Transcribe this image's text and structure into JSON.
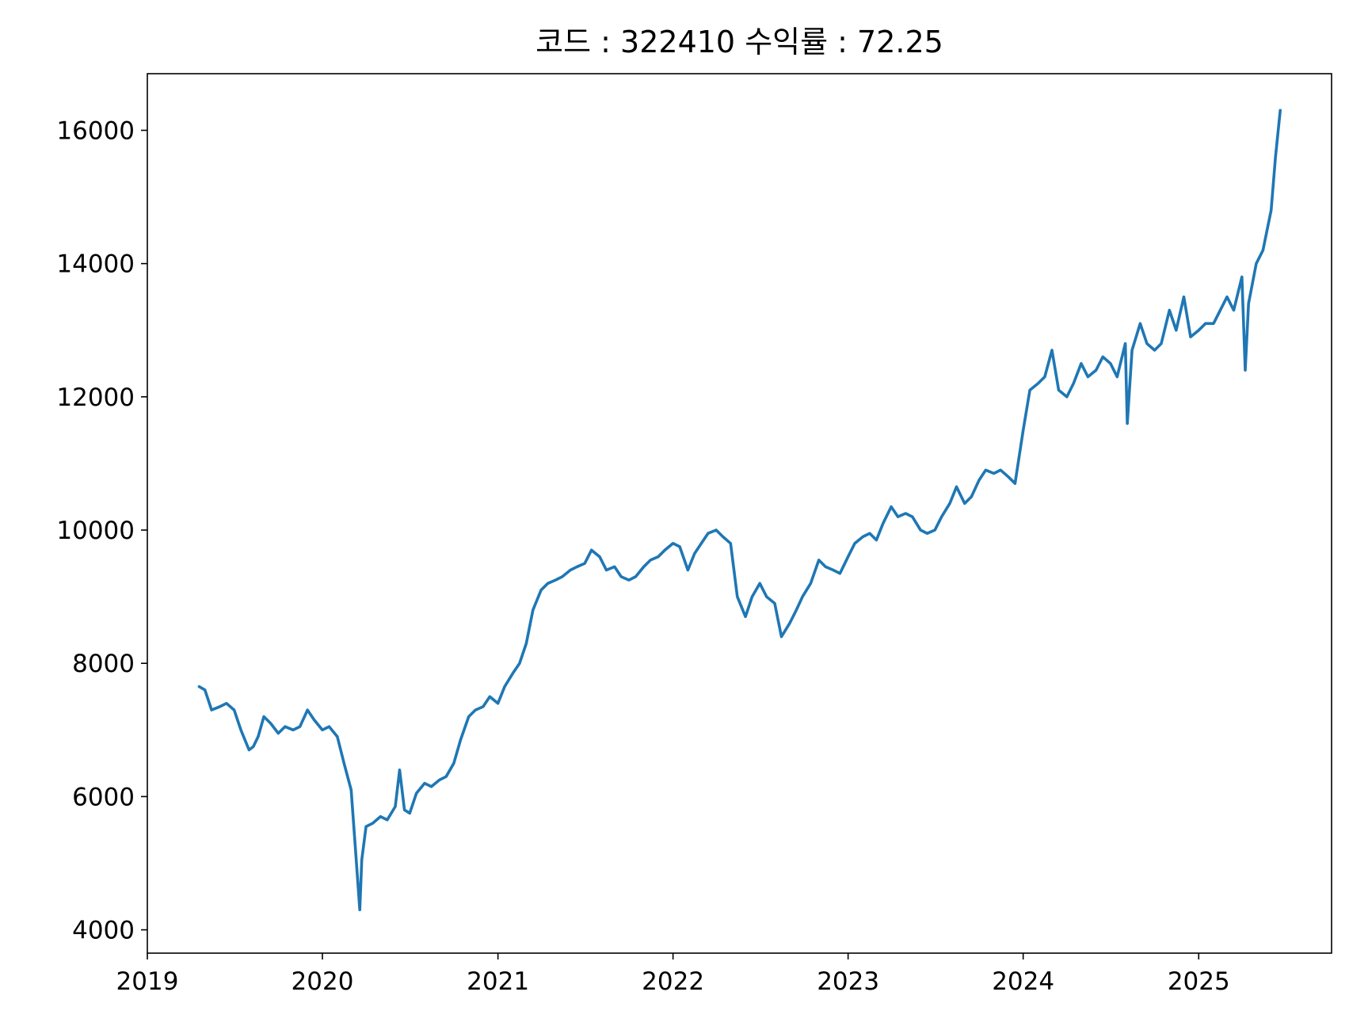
{
  "chart_data": {
    "type": "line",
    "title": "코드 : 322410 수익률 : 72.25",
    "xlabel": "",
    "ylabel": "",
    "x_ticks": [
      "2019",
      "2020",
      "2021",
      "2022",
      "2023",
      "2024",
      "2025"
    ],
    "y_ticks": [
      "4000",
      "6000",
      "8000",
      "10000",
      "12000",
      "14000",
      "16000"
    ],
    "xlim": [
      "2019-01-01",
      "2025-10-05"
    ],
    "ylim": [
      3650,
      16850
    ],
    "grid": false,
    "line_color": "#1f77b4",
    "series": [
      {
        "x": [
          "2019-04-19",
          "2019-05-01",
          "2019-05-15",
          "2019-06-01",
          "2019-06-15",
          "2019-07-01",
          "2019-07-15",
          "2019-08-01",
          "2019-08-10",
          "2019-08-20",
          "2019-09-01",
          "2019-09-15",
          "2019-10-01",
          "2019-10-15",
          "2019-11-01",
          "2019-11-15",
          "2019-12-01",
          "2019-12-15",
          "2020-01-01",
          "2020-01-15",
          "2020-02-01",
          "2020-02-15",
          "2020-03-01",
          "2020-03-10",
          "2020-03-19",
          "2020-03-23",
          "2020-04-01",
          "2020-04-15",
          "2020-05-01",
          "2020-05-15",
          "2020-06-01",
          "2020-06-10",
          "2020-06-20",
          "2020-07-01",
          "2020-07-15",
          "2020-08-01",
          "2020-08-15",
          "2020-09-01",
          "2020-09-15",
          "2020-10-01",
          "2020-10-15",
          "2020-11-01",
          "2020-11-15",
          "2020-12-01",
          "2020-12-15",
          "2021-01-01",
          "2021-01-15",
          "2021-02-01",
          "2021-02-15",
          "2021-03-01",
          "2021-03-15",
          "2021-04-01",
          "2021-04-15",
          "2021-05-01",
          "2021-05-15",
          "2021-06-01",
          "2021-06-15",
          "2021-07-01",
          "2021-07-15",
          "2021-08-01",
          "2021-08-15",
          "2021-09-01",
          "2021-09-15",
          "2021-10-01",
          "2021-10-15",
          "2021-11-01",
          "2021-11-15",
          "2021-12-01",
          "2021-12-15",
          "2022-01-01",
          "2022-01-15",
          "2022-02-01",
          "2022-02-15",
          "2022-03-01",
          "2022-03-15",
          "2022-04-01",
          "2022-04-15",
          "2022-05-01",
          "2022-05-15",
          "2022-06-01",
          "2022-06-15",
          "2022-07-01",
          "2022-07-15",
          "2022-08-01",
          "2022-08-15",
          "2022-09-01",
          "2022-09-15",
          "2022-09-28",
          "2022-10-15",
          "2022-11-01",
          "2022-11-15",
          "2022-12-01",
          "2022-12-15",
          "2023-01-01",
          "2023-01-15",
          "2023-02-01",
          "2023-02-15",
          "2023-03-01",
          "2023-03-15",
          "2023-04-01",
          "2023-04-15",
          "2023-05-01",
          "2023-05-15",
          "2023-06-01",
          "2023-06-15",
          "2023-07-01",
          "2023-07-15",
          "2023-08-01",
          "2023-08-15",
          "2023-09-01",
          "2023-09-15",
          "2023-10-01",
          "2023-10-15",
          "2023-11-01",
          "2023-11-15",
          "2023-12-01",
          "2023-12-15",
          "2024-01-01",
          "2024-01-15",
          "2024-02-01",
          "2024-02-15",
          "2024-03-01",
          "2024-03-15",
          "2024-04-01",
          "2024-04-15",
          "2024-05-01",
          "2024-05-15",
          "2024-06-01",
          "2024-06-15",
          "2024-07-01",
          "2024-07-15",
          "2024-08-01",
          "2024-08-05",
          "2024-08-15",
          "2024-09-01",
          "2024-09-15",
          "2024-10-01",
          "2024-10-15",
          "2024-11-01",
          "2024-11-15",
          "2024-12-01",
          "2024-12-15",
          "2025-01-01",
          "2025-01-15",
          "2025-02-01",
          "2025-02-15",
          "2025-03-01",
          "2025-03-15",
          "2025-04-01",
          "2025-04-08",
          "2025-04-15",
          "2025-05-01",
          "2025-05-15",
          "2025-06-01",
          "2025-06-10",
          "2025-06-20"
        ],
        "values": [
          7650,
          7600,
          7300,
          7350,
          7400,
          7300,
          7000,
          6700,
          6750,
          6900,
          7200,
          7100,
          6950,
          7050,
          7000,
          7050,
          7300,
          7150,
          7000,
          7050,
          6900,
          6500,
          6100,
          5200,
          4300,
          5050,
          5550,
          5600,
          5700,
          5650,
          5850,
          6400,
          5800,
          5750,
          6050,
          6200,
          6150,
          6250,
          6300,
          6500,
          6850,
          7200,
          7300,
          7350,
          7500,
          7400,
          7650,
          7850,
          8000,
          8300,
          8800,
          9100,
          9200,
          9250,
          9300,
          9400,
          9450,
          9500,
          9700,
          9600,
          9400,
          9450,
          9300,
          9250,
          9300,
          9450,
          9550,
          9600,
          9700,
          9800,
          9750,
          9400,
          9650,
          9800,
          9950,
          10000,
          9900,
          9800,
          9000,
          8700,
          9000,
          9200,
          9000,
          8900,
          8400,
          8600,
          8800,
          9000,
          9200,
          9550,
          9450,
          9400,
          9350,
          9600,
          9800,
          9900,
          9950,
          9850,
          10100,
          10350,
          10200,
          10250,
          10200,
          10000,
          9950,
          10000,
          10200,
          10400,
          10650,
          10400,
          10500,
          10750,
          10900,
          10850,
          10900,
          10800,
          10700,
          11500,
          12100,
          12200,
          12300,
          12700,
          12100,
          12000,
          12200,
          12500,
          12300,
          12400,
          12600,
          12500,
          12300,
          12800,
          11600,
          12700,
          13100,
          12800,
          12700,
          12800,
          13300,
          13000,
          13500,
          12900,
          13000,
          13100,
          13100,
          13300,
          13500,
          13300,
          13800,
          12400,
          13400,
          14000,
          14200,
          14800,
          15600,
          16300
        ]
      }
    ]
  }
}
